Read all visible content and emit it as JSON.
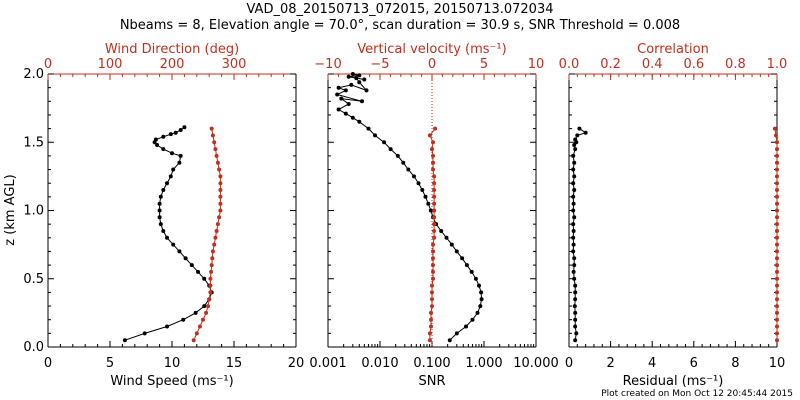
{
  "title_line1": "VAD_08_20150713_072015, 20150713.072034",
  "title_line2": "Nbeams = 8, Elevation angle = 70.0°, scan duration = 30.9 s, SNR Threshold = 0.008",
  "credit": "Plot created on Mon Oct 12 20:45:44 2015",
  "colors": {
    "primary": "#000000",
    "secondary": "#c0301e"
  },
  "chart_data": [
    {
      "type": "line",
      "ylabel": "z (km AGL)",
      "ylim": [
        0,
        2
      ],
      "yticks": [
        "0.0",
        "0.5",
        "1.0",
        "1.5",
        "2.0"
      ],
      "xlabel": "Wind Speed (ms⁻¹)",
      "xlim": [
        0,
        20
      ],
      "xticks": [
        "0",
        "5",
        "10",
        "15",
        "20"
      ],
      "top_xlabel": "Wind Direction (deg)",
      "top_xlim": [
        0,
        400
      ],
      "top_xticks": [
        "0",
        "100",
        "200",
        "300"
      ],
      "series": [
        {
          "axis": "bottom",
          "color": "#000000",
          "x": [
            6.2,
            7.8,
            9.6,
            10.9,
            11.9,
            12.6,
            13.0,
            13.2,
            13.0,
            12.6,
            12.1,
            11.6,
            11.1,
            10.6,
            10.1,
            9.6,
            9.3,
            9.1,
            9.0,
            9.0,
            9.0,
            9.1,
            9.3,
            9.6,
            9.9,
            10.1,
            10.6,
            10.7,
            10.0,
            9.3,
            8.8,
            8.6,
            8.7,
            9.3,
            9.9,
            10.3,
            10.7,
            11.0
          ],
          "y": [
            0.05,
            0.1,
            0.15,
            0.2,
            0.25,
            0.3,
            0.35,
            0.4,
            0.45,
            0.5,
            0.55,
            0.6,
            0.65,
            0.7,
            0.75,
            0.8,
            0.85,
            0.9,
            0.95,
            1.0,
            1.05,
            1.1,
            1.15,
            1.2,
            1.25,
            1.3,
            1.35,
            1.4,
            1.42,
            1.45,
            1.48,
            1.5,
            1.52,
            1.54,
            1.56,
            1.57,
            1.59,
            1.61
          ]
        },
        {
          "axis": "top",
          "color": "#c0301e",
          "x": [
            235,
            240,
            245,
            250,
            255,
            258,
            260,
            262,
            262,
            262,
            263,
            264,
            265,
            266,
            268,
            270,
            272,
            274,
            276,
            278,
            278,
            278,
            278,
            278,
            278,
            276,
            274,
            272,
            270,
            268,
            266,
            264
          ],
          "y": [
            0.05,
            0.1,
            0.15,
            0.2,
            0.25,
            0.3,
            0.35,
            0.4,
            0.45,
            0.5,
            0.55,
            0.6,
            0.65,
            0.7,
            0.75,
            0.8,
            0.85,
            0.9,
            0.95,
            1.0,
            1.05,
            1.1,
            1.15,
            1.2,
            1.25,
            1.3,
            1.35,
            1.4,
            1.45,
            1.5,
            1.55,
            1.6
          ]
        }
      ]
    },
    {
      "type": "line",
      "ylim": [
        0,
        2
      ],
      "xlabel": "SNR",
      "xlim": [
        0.001,
        10
      ],
      "xscale": "log",
      "xticks": [
        "0.001",
        "0.010",
        "0.100",
        "1.000",
        "10.000"
      ],
      "top_xlabel": "Vertical velocity (ms⁻¹)",
      "top_xlim": [
        -10,
        10
      ],
      "top_xticks": [
        "−10",
        "−5",
        "0",
        "5",
        "10"
      ],
      "zero_line": 0,
      "series": [
        {
          "axis": "bottom",
          "color": "#000000",
          "x": [
            0.22,
            0.3,
            0.45,
            0.6,
            0.75,
            0.85,
            0.9,
            0.88,
            0.8,
            0.7,
            0.58,
            0.47,
            0.38,
            0.3,
            0.24,
            0.19,
            0.15,
            0.12,
            0.105,
            0.095,
            0.085,
            0.075,
            0.065,
            0.055,
            0.045,
            0.035,
            0.028,
            0.022,
            0.016,
            0.012,
            0.008,
            0.006,
            0.004,
            0.003,
            0.0022,
            0.0016,
            0.0025,
            0.0018,
            0.0045,
            0.0015,
            0.0022,
            0.0016,
            0.0028,
            0.0055,
            0.004,
            0.0035,
            0.005,
            0.0025,
            0.004,
            0.003
          ],
          "y": [
            0.05,
            0.1,
            0.15,
            0.2,
            0.25,
            0.3,
            0.35,
            0.4,
            0.45,
            0.5,
            0.55,
            0.6,
            0.65,
            0.7,
            0.75,
            0.8,
            0.85,
            0.9,
            0.95,
            1.0,
            1.05,
            1.1,
            1.15,
            1.2,
            1.25,
            1.3,
            1.35,
            1.4,
            1.45,
            1.5,
            1.55,
            1.6,
            1.65,
            1.68,
            1.71,
            1.74,
            1.78,
            1.82,
            1.8,
            1.85,
            1.88,
            1.9,
            1.92,
            1.88,
            1.94,
            1.97,
            1.96,
            1.98,
            1.99,
            2.0
          ]
        },
        {
          "axis": "top",
          "color": "#c0301e",
          "x": [
            -0.2,
            -0.2,
            -0.1,
            -0.1,
            -0.1,
            0.0,
            0.0,
            0.0,
            0.0,
            0.1,
            0.1,
            0.1,
            0.1,
            0.1,
            0.1,
            0.2,
            0.2,
            0.2,
            0.2,
            0.2,
            0.2,
            0.2,
            0.2,
            0.2,
            0.2,
            0.1,
            0.1,
            0.1,
            0.0,
            0.1,
            -0.2,
            0.3
          ],
          "y": [
            0.05,
            0.1,
            0.15,
            0.2,
            0.25,
            0.3,
            0.35,
            0.4,
            0.45,
            0.5,
            0.55,
            0.6,
            0.65,
            0.7,
            0.75,
            0.8,
            0.85,
            0.9,
            0.95,
            1.0,
            1.05,
            1.1,
            1.15,
            1.2,
            1.25,
            1.3,
            1.35,
            1.4,
            1.45,
            1.5,
            1.55,
            1.6
          ]
        }
      ]
    },
    {
      "type": "line",
      "ylim": [
        0,
        2
      ],
      "xlabel": "Residual (ms⁻¹)",
      "xlim": [
        0,
        10
      ],
      "xticks": [
        "0",
        "2",
        "4",
        "6",
        "8",
        "10"
      ],
      "top_xlabel": "Correlation",
      "top_xlim": [
        0,
        1
      ],
      "top_xticks": [
        "0.0",
        "0.2",
        "0.4",
        "0.6",
        "0.8",
        "1.0"
      ],
      "series": [
        {
          "axis": "bottom",
          "color": "#000000",
          "x": [
            0.3,
            0.35,
            0.3,
            0.3,
            0.3,
            0.28,
            0.3,
            0.3,
            0.3,
            0.25,
            0.22,
            0.25,
            0.25,
            0.2,
            0.22,
            0.2,
            0.22,
            0.2,
            0.25,
            0.2,
            0.22,
            0.2,
            0.25,
            0.2,
            0.25,
            0.2,
            0.25,
            0.2,
            0.3,
            0.25,
            0.35,
            0.3,
            0.4,
            0.8,
            0.5
          ],
          "y": [
            0.05,
            0.1,
            0.15,
            0.2,
            0.25,
            0.3,
            0.35,
            0.4,
            0.45,
            0.5,
            0.55,
            0.6,
            0.65,
            0.7,
            0.75,
            0.8,
            0.85,
            0.9,
            0.95,
            1.0,
            1.05,
            1.1,
            1.15,
            1.2,
            1.25,
            1.3,
            1.35,
            1.4,
            1.45,
            1.48,
            1.5,
            1.52,
            1.55,
            1.57,
            1.6
          ]
        },
        {
          "axis": "top",
          "color": "#c0301e",
          "x": [
            1.0,
            1.0,
            1.0,
            1.0,
            1.0,
            1.0,
            1.0,
            1.0,
            1.0,
            1.0,
            1.0,
            1.0,
            1.0,
            1.0,
            1.0,
            1.0,
            1.0,
            1.0,
            1.0,
            1.0,
            1.0,
            1.0,
            1.0,
            1.0,
            1.0,
            1.0,
            1.0,
            1.0,
            1.0,
            1.0,
            0.995,
            0.99
          ],
          "y": [
            0.05,
            0.1,
            0.15,
            0.2,
            0.25,
            0.3,
            0.35,
            0.4,
            0.45,
            0.5,
            0.55,
            0.6,
            0.65,
            0.7,
            0.75,
            0.8,
            0.85,
            0.9,
            0.95,
            1.0,
            1.05,
            1.1,
            1.15,
            1.2,
            1.25,
            1.3,
            1.35,
            1.4,
            1.45,
            1.5,
            1.55,
            1.6
          ]
        }
      ]
    }
  ]
}
